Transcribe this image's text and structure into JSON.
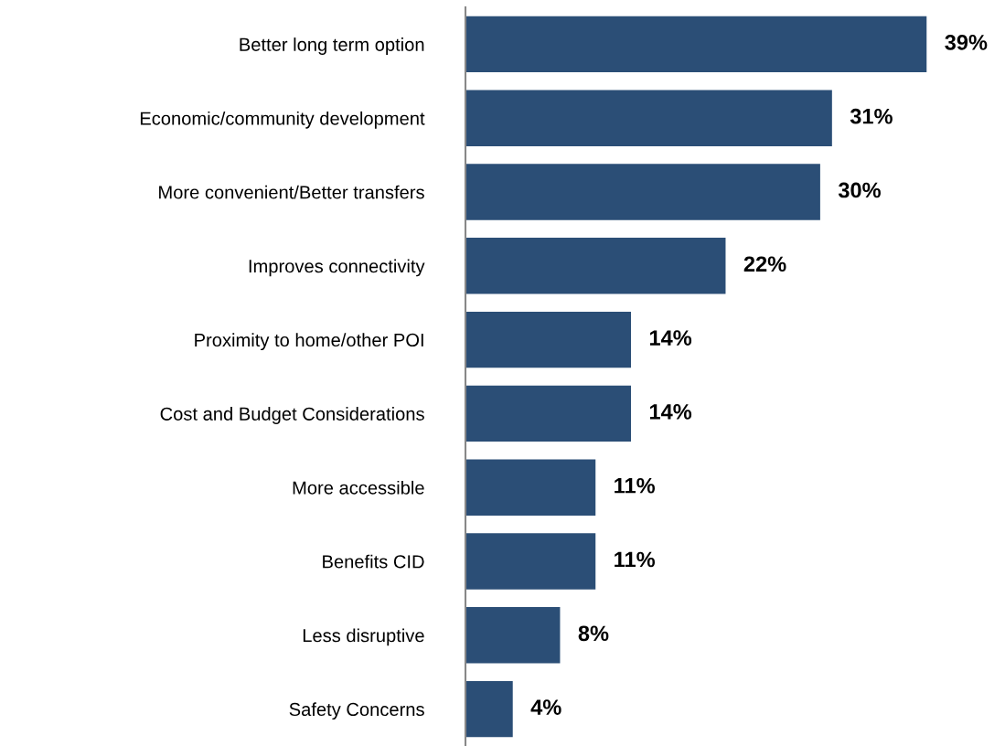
{
  "chart_data": {
    "type": "bar",
    "orientation": "horizontal",
    "tick_labels": "y",
    "grid": false,
    "legend": false,
    "categories": [
      "Better long term option",
      "Economic/community development",
      "More convenient/Better transfers",
      "Improves connectivity",
      "Proximity to home/other POI",
      "Cost and Budget Considerations",
      "More accessible",
      "Benefits CID",
      "Less disruptive",
      "Safety Concerns"
    ],
    "values": [
      39,
      31,
      30,
      22,
      14,
      14,
      11,
      11,
      8,
      4
    ],
    "value_labels": [
      "39%",
      "31%",
      "30%",
      "22%",
      "14%",
      "14%",
      "11%",
      "11%",
      "8%",
      "4%"
    ],
    "color": "#2b4e76"
  }
}
